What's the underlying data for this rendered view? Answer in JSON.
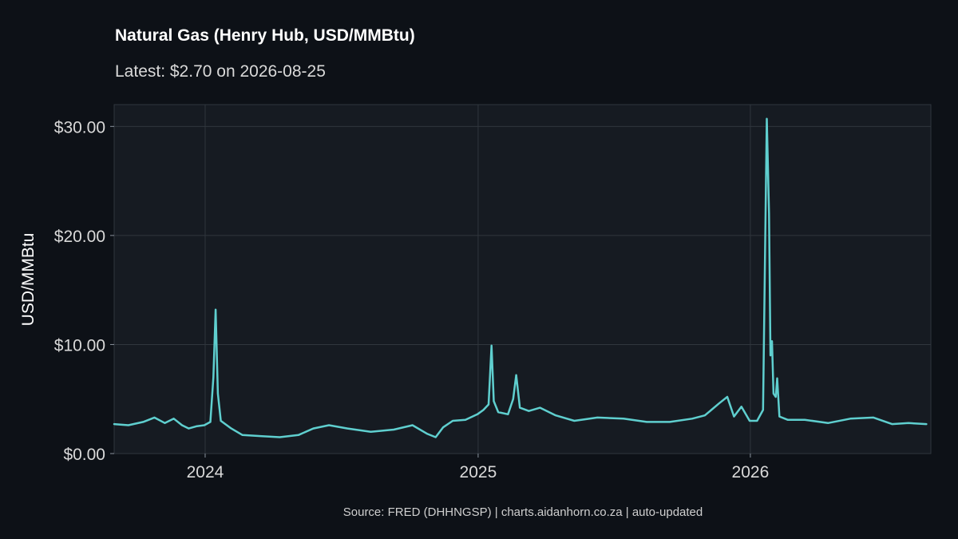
{
  "title": "Natural Gas (Henry Hub, USD/MMBtu)",
  "subtitle": "Latest: $2.70 on 2026-08-25",
  "caption": "Source: FRED (DHHNGSP) | charts.aidanhorn.co.za | auto-updated",
  "colors": {
    "background": "#0d1117",
    "panel": "#161b22",
    "grid": "#30363d",
    "line": "#5fcfcf"
  },
  "chart_data": {
    "type": "line",
    "title": "Natural Gas (Henry Hub, USD/MMBtu)",
    "xlabel": "",
    "ylabel": "USD/MMBtu",
    "xlim": [
      "2023-09-01",
      "2026-08-31"
    ],
    "ylim": [
      0,
      32
    ],
    "y_ticks": [
      0,
      10,
      20,
      30
    ],
    "y_tick_labels": [
      "$0.00",
      "$10.00",
      "$20.00",
      "$30.00"
    ],
    "x_ticks": [
      "2024-01-01",
      "2025-01-01",
      "2026-01-01"
    ],
    "x_tick_labels": [
      "2024",
      "2025",
      "2026"
    ],
    "grid": true,
    "series": [
      {
        "values": [
          [
            "2023-09-01",
            2.7
          ],
          [
            "2023-09-20",
            2.6
          ],
          [
            "2023-10-10",
            2.9
          ],
          [
            "2023-10-25",
            3.3
          ],
          [
            "2023-11-08",
            2.8
          ],
          [
            "2023-11-20",
            3.2
          ],
          [
            "2023-12-01",
            2.6
          ],
          [
            "2023-12-10",
            2.3
          ],
          [
            "2023-12-20",
            2.5
          ],
          [
            "2023-12-31",
            2.6
          ],
          [
            "2024-01-08",
            2.9
          ],
          [
            "2024-01-12",
            7.0
          ],
          [
            "2024-01-15",
            13.2
          ],
          [
            "2024-01-18",
            5.5
          ],
          [
            "2024-01-22",
            3.0
          ],
          [
            "2024-02-05",
            2.3
          ],
          [
            "2024-02-20",
            1.7
          ],
          [
            "2024-03-15",
            1.6
          ],
          [
            "2024-04-10",
            1.5
          ],
          [
            "2024-05-05",
            1.7
          ],
          [
            "2024-05-25",
            2.3
          ],
          [
            "2024-06-15",
            2.6
          ],
          [
            "2024-07-10",
            2.3
          ],
          [
            "2024-08-10",
            2.0
          ],
          [
            "2024-09-10",
            2.2
          ],
          [
            "2024-10-05",
            2.6
          ],
          [
            "2024-10-25",
            1.8
          ],
          [
            "2024-11-05",
            1.5
          ],
          [
            "2024-11-15",
            2.4
          ],
          [
            "2024-11-28",
            3.0
          ],
          [
            "2024-12-15",
            3.1
          ],
          [
            "2024-12-31",
            3.6
          ],
          [
            "2025-01-08",
            4.0
          ],
          [
            "2025-01-15",
            4.5
          ],
          [
            "2025-01-19",
            9.9
          ],
          [
            "2025-01-22",
            4.8
          ],
          [
            "2025-01-28",
            3.8
          ],
          [
            "2025-02-10",
            3.6
          ],
          [
            "2025-02-17",
            5.0
          ],
          [
            "2025-02-21",
            7.2
          ],
          [
            "2025-02-26",
            4.2
          ],
          [
            "2025-03-10",
            3.9
          ],
          [
            "2025-03-25",
            4.2
          ],
          [
            "2025-04-15",
            3.5
          ],
          [
            "2025-05-10",
            3.0
          ],
          [
            "2025-06-10",
            3.3
          ],
          [
            "2025-07-15",
            3.2
          ],
          [
            "2025-08-15",
            2.9
          ],
          [
            "2025-09-15",
            2.9
          ],
          [
            "2025-10-15",
            3.2
          ],
          [
            "2025-11-01",
            3.5
          ],
          [
            "2025-11-20",
            4.6
          ],
          [
            "2025-12-01",
            5.2
          ],
          [
            "2025-12-10",
            3.4
          ],
          [
            "2025-12-20",
            4.3
          ],
          [
            "2025-12-31",
            3.0
          ],
          [
            "2026-01-10",
            3.0
          ],
          [
            "2026-01-18",
            4.0
          ],
          [
            "2026-01-21",
            20.0
          ],
          [
            "2026-01-23",
            30.7
          ],
          [
            "2026-01-26",
            22.0
          ],
          [
            "2026-01-28",
            9.0
          ],
          [
            "2026-01-30",
            10.3
          ],
          [
            "2026-02-01",
            5.5
          ],
          [
            "2026-02-04",
            5.2
          ],
          [
            "2026-02-06",
            6.9
          ],
          [
            "2026-02-09",
            3.4
          ],
          [
            "2026-02-20",
            3.1
          ],
          [
            "2026-03-15",
            3.1
          ],
          [
            "2026-04-15",
            2.8
          ],
          [
            "2026-05-15",
            3.2
          ],
          [
            "2026-06-15",
            3.3
          ],
          [
            "2026-07-10",
            2.7
          ],
          [
            "2026-08-01",
            2.8
          ],
          [
            "2026-08-25",
            2.7
          ]
        ]
      }
    ]
  }
}
